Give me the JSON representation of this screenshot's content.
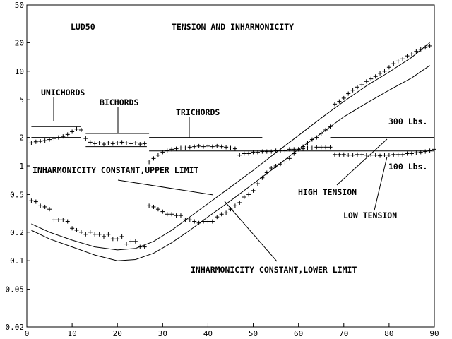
{
  "chart_data": {
    "type": "scatter",
    "xlim": [
      0,
      90
    ],
    "ylim": [
      0.02,
      50
    ],
    "y_scale": "log",
    "grid": false,
    "x_ticks": [
      0,
      10,
      20,
      30,
      40,
      50,
      60,
      70,
      80,
      90
    ],
    "y_ticks": [
      {
        "value": 0.02,
        "label": "0.02"
      },
      {
        "value": 0.05,
        "label": "0.05"
      },
      {
        "value": 0.1,
        "label": "0.1"
      },
      {
        "value": 0.2,
        "label": "0.2"
      },
      {
        "value": 0.5,
        "label": "0.5"
      },
      {
        "value": 1,
        "label": "1"
      },
      {
        "value": 2,
        "label": "2"
      },
      {
        "value": 5,
        "label": "5"
      },
      {
        "value": 10,
        "label": "10"
      },
      {
        "value": 20,
        "label": "20"
      },
      {
        "value": 50,
        "label": "50"
      }
    ],
    "annotations": {
      "model": "LUD50",
      "title": "TENSION AND INHARMONICITY",
      "unichords": "UNICHORDS",
      "bichords": "BICHORDS",
      "trichords": "TRICHORDS",
      "upper_limit": "INHARMONICITY CONSTANT,UPPER LIMIT",
      "lower_limit": "INHARMONICITY CONSTANT,LOWER LIMIT",
      "high_tension": "HIGH TENSION",
      "low_tension": "LOW TENSION",
      "lbs_300": "300 Lbs.",
      "lbs_100": "100 Lbs."
    },
    "reference_lines": [
      {
        "value": 2.0,
        "x": [
          67,
          90
        ]
      },
      {
        "value": 1.44,
        "x": [
          52,
          90
        ]
      }
    ],
    "group_lines": [
      {
        "value": 2.6,
        "x": [
          1,
          12
        ]
      },
      {
        "value": 2.2,
        "x": [
          13,
          27
        ]
      },
      {
        "value": 2.0,
        "x": [
          27,
          52
        ]
      },
      {
        "value": 2.0,
        "x": [
          1,
          12
        ]
      },
      {
        "value": 1.6,
        "x": [
          13,
          26.5
        ]
      },
      {
        "value": 1.44,
        "x": [
          27,
          52
        ]
      }
    ],
    "series": [
      {
        "points": [
          [
            1,
            1.75
          ],
          [
            2,
            1.8
          ],
          [
            3,
            1.82
          ],
          [
            4,
            1.85
          ],
          [
            5,
            1.9
          ],
          [
            6,
            1.95
          ],
          [
            7,
            2.0
          ],
          [
            8,
            2.05
          ],
          [
            9,
            2.15
          ],
          [
            10,
            2.3
          ],
          [
            11,
            2.45
          ],
          [
            12,
            2.4
          ],
          [
            13,
            1.95
          ],
          [
            14,
            1.78
          ],
          [
            15,
            1.72
          ],
          [
            16,
            1.75
          ],
          [
            17,
            1.7
          ],
          [
            18,
            1.75
          ],
          [
            19,
            1.72
          ],
          [
            20,
            1.75
          ],
          [
            21,
            1.78
          ],
          [
            22,
            1.75
          ],
          [
            23,
            1.72
          ],
          [
            24,
            1.75
          ],
          [
            25,
            1.7
          ],
          [
            26,
            1.72
          ],
          [
            27,
            1.1
          ],
          [
            28,
            1.2
          ],
          [
            29,
            1.3
          ],
          [
            30,
            1.4
          ],
          [
            31,
            1.45
          ],
          [
            32,
            1.5
          ],
          [
            33,
            1.52
          ],
          [
            34,
            1.55
          ],
          [
            35,
            1.55
          ],
          [
            36,
            1.58
          ],
          [
            37,
            1.6
          ],
          [
            38,
            1.62
          ],
          [
            39,
            1.6
          ],
          [
            40,
            1.62
          ],
          [
            41,
            1.6
          ],
          [
            42,
            1.62
          ],
          [
            43,
            1.6
          ],
          [
            44,
            1.58
          ],
          [
            45,
            1.55
          ],
          [
            46,
            1.52
          ],
          [
            47,
            1.3
          ],
          [
            48,
            1.35
          ],
          [
            49,
            1.35
          ],
          [
            50,
            1.4
          ],
          [
            51,
            1.4
          ],
          [
            52,
            1.42
          ],
          [
            53,
            1.42
          ],
          [
            54,
            1.42
          ],
          [
            55,
            1.45
          ],
          [
            56,
            1.45
          ],
          [
            57,
            1.45
          ],
          [
            58,
            1.5
          ],
          [
            59,
            1.5
          ],
          [
            60,
            1.5
          ],
          [
            61,
            1.52
          ],
          [
            62,
            1.55
          ],
          [
            63,
            1.55
          ],
          [
            64,
            1.58
          ],
          [
            65,
            1.58
          ],
          [
            66,
            1.58
          ],
          [
            67,
            1.58
          ],
          [
            68,
            1.32
          ],
          [
            69,
            1.32
          ],
          [
            70,
            1.32
          ],
          [
            71,
            1.3
          ],
          [
            72,
            1.3
          ],
          [
            73,
            1.32
          ],
          [
            74,
            1.32
          ],
          [
            75,
            1.3
          ],
          [
            76,
            1.3
          ],
          [
            77,
            1.3
          ],
          [
            78,
            1.28
          ],
          [
            79,
            1.3
          ],
          [
            80,
            1.3
          ],
          [
            81,
            1.32
          ],
          [
            82,
            1.32
          ],
          [
            83,
            1.32
          ],
          [
            84,
            1.35
          ],
          [
            85,
            1.35
          ],
          [
            86,
            1.38
          ],
          [
            87,
            1.4
          ],
          [
            88,
            1.42
          ],
          [
            89,
            1.45
          ],
          [
            90,
            1.5
          ]
        ]
      },
      {
        "points": [
          [
            1,
            0.43
          ],
          [
            2,
            0.42
          ],
          [
            3,
            0.38
          ],
          [
            4,
            0.37
          ],
          [
            5,
            0.35
          ],
          [
            6,
            0.27
          ],
          [
            7,
            0.27
          ],
          [
            8,
            0.27
          ],
          [
            9,
            0.26
          ],
          [
            10,
            0.22
          ],
          [
            11,
            0.21
          ],
          [
            12,
            0.2
          ],
          [
            13,
            0.19
          ],
          [
            14,
            0.2
          ],
          [
            15,
            0.19
          ],
          [
            16,
            0.19
          ],
          [
            17,
            0.18
          ],
          [
            18,
            0.19
          ],
          [
            19,
            0.17
          ],
          [
            20,
            0.17
          ],
          [
            21,
            0.18
          ],
          [
            22,
            0.15
          ],
          [
            23,
            0.16
          ],
          [
            24,
            0.16
          ],
          [
            25,
            0.14
          ],
          [
            26,
            0.14
          ],
          [
            27,
            0.38
          ],
          [
            28,
            0.37
          ],
          [
            29,
            0.35
          ],
          [
            30,
            0.33
          ],
          [
            31,
            0.31
          ],
          [
            32,
            0.31
          ],
          [
            33,
            0.3
          ],
          [
            34,
            0.3
          ],
          [
            35,
            0.27
          ],
          [
            36,
            0.27
          ],
          [
            37,
            0.26
          ],
          [
            38,
            0.25
          ],
          [
            39,
            0.26
          ],
          [
            40,
            0.26
          ],
          [
            41,
            0.26
          ],
          [
            42,
            0.29
          ],
          [
            43,
            0.31
          ],
          [
            44,
            0.32
          ],
          [
            45,
            0.35
          ],
          [
            46,
            0.38
          ],
          [
            47,
            0.41
          ],
          [
            48,
            0.47
          ],
          [
            49,
            0.5
          ],
          [
            50,
            0.55
          ],
          [
            51,
            0.65
          ],
          [
            52,
            0.75
          ],
          [
            53,
            0.85
          ],
          [
            54,
            0.95
          ],
          [
            55,
            1.0
          ],
          [
            56,
            1.05
          ],
          [
            57,
            1.1
          ],
          [
            58,
            1.2
          ],
          [
            59,
            1.35
          ],
          [
            60,
            1.5
          ],
          [
            61,
            1.6
          ],
          [
            62,
            1.75
          ],
          [
            63,
            1.9
          ],
          [
            64,
            2.0
          ],
          [
            65,
            2.2
          ],
          [
            66,
            2.4
          ],
          [
            67,
            2.6
          ],
          [
            68,
            4.5
          ],
          [
            69,
            4.8
          ],
          [
            70,
            5.2
          ],
          [
            71,
            5.8
          ],
          [
            72,
            6.3
          ],
          [
            73,
            6.8
          ],
          [
            74,
            7.2
          ],
          [
            75,
            7.8
          ],
          [
            76,
            8.3
          ],
          [
            77,
            8.8
          ],
          [
            78,
            9.5
          ],
          [
            79,
            10
          ],
          [
            80,
            11
          ],
          [
            81,
            12
          ],
          [
            82,
            12.8
          ],
          [
            83,
            13.5
          ],
          [
            84,
            14.5
          ],
          [
            85,
            15.2
          ],
          [
            86,
            16.2
          ],
          [
            87,
            17
          ],
          [
            88,
            17.8
          ],
          [
            89,
            18.5
          ]
        ]
      }
    ],
    "curves": [
      {
        "name_ref": "upper_limit",
        "points": [
          [
            1,
            0.245
          ],
          [
            5,
            0.2
          ],
          [
            10,
            0.165
          ],
          [
            15,
            0.14
          ],
          [
            20,
            0.13
          ],
          [
            24,
            0.135
          ],
          [
            28,
            0.16
          ],
          [
            32,
            0.21
          ],
          [
            36,
            0.29
          ],
          [
            40,
            0.4
          ],
          [
            45,
            0.6
          ],
          [
            50,
            0.9
          ],
          [
            55,
            1.38
          ],
          [
            60,
            2.1
          ],
          [
            65,
            3.2
          ],
          [
            70,
            4.8
          ],
          [
            75,
            7.0
          ],
          [
            80,
            9.8
          ],
          [
            85,
            14
          ],
          [
            89,
            20
          ]
        ]
      },
      {
        "name_ref": "lower_limit",
        "points": [
          [
            1,
            0.21
          ],
          [
            5,
            0.17
          ],
          [
            10,
            0.14
          ],
          [
            15,
            0.115
          ],
          [
            20,
            0.1
          ],
          [
            24,
            0.103
          ],
          [
            28,
            0.12
          ],
          [
            32,
            0.155
          ],
          [
            36,
            0.21
          ],
          [
            40,
            0.29
          ],
          [
            45,
            0.43
          ],
          [
            50,
            0.65
          ],
          [
            55,
            0.98
          ],
          [
            60,
            1.5
          ],
          [
            65,
            2.2
          ],
          [
            70,
            3.3
          ],
          [
            75,
            4.6
          ],
          [
            80,
            6.3
          ],
          [
            85,
            8.5
          ],
          [
            89,
            11.5
          ]
        ]
      }
    ]
  }
}
